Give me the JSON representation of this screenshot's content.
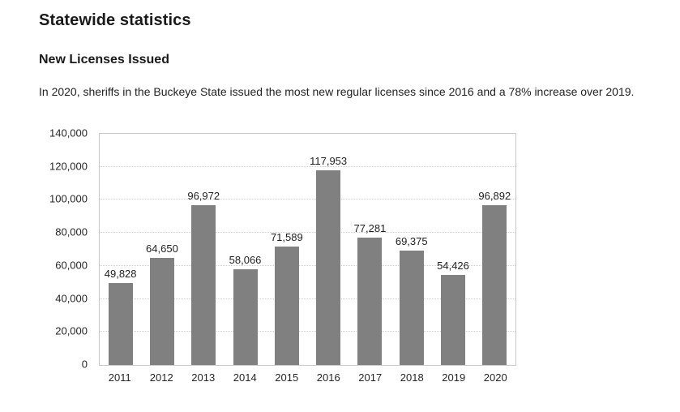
{
  "header": {
    "title": "Statewide statistics",
    "subtitle": "New Licenses Issued",
    "description": "In 2020, sheriffs in the Buckeye State issued the most new regular licenses since 2016 and a 78% increase over 2019."
  },
  "chart_data": {
    "type": "bar",
    "title": "",
    "xlabel": "",
    "ylabel": "",
    "categories": [
      "2011",
      "2012",
      "2013",
      "2014",
      "2015",
      "2016",
      "2017",
      "2018",
      "2019",
      "2020"
    ],
    "values": [
      49828,
      64650,
      96972,
      58066,
      71589,
      117953,
      77281,
      69375,
      54426,
      96892
    ],
    "data_labels": [
      "49,828",
      "64,650",
      "96,972",
      "58,066",
      "71,589",
      "117,953",
      "77,281",
      "69,375",
      "54,426",
      "96,892"
    ],
    "ylim": [
      0,
      140000
    ],
    "ytick_step": 20000,
    "ytick_labels": [
      "0",
      "20,000",
      "40,000",
      "60,000",
      "80,000",
      "100,000",
      "120,000",
      "140,000"
    ],
    "grid": "horizontal-dotted",
    "legend": "none",
    "bar_color": "#808080",
    "gridline_color": "#cfcfcf",
    "plot_border_color": "#c9c9c9"
  }
}
